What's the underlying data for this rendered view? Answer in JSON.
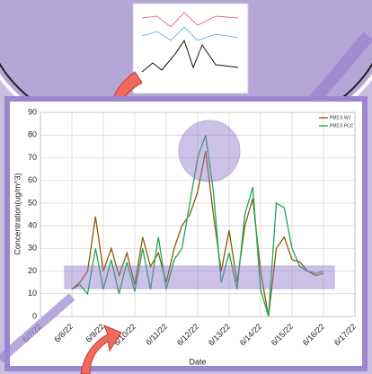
{
  "chart_data": {
    "type": "line",
    "y_label": "Concentration(ug/m^3)",
    "x_label": "Date",
    "x": [
      "6/8/22 00:00",
      "6/8/22 06:00",
      "6/8/22 12:00",
      "6/8/22 18:00",
      "6/9/22 00:00",
      "6/9/22 06:00",
      "6/9/22 12:00",
      "6/9/22 18:00",
      "6/10/22 00:00",
      "6/10/22 06:00",
      "6/10/22 12:00",
      "6/10/22 18:00",
      "6/11/22 00:00",
      "6/11/22 06:00",
      "6/11/22 12:00",
      "6/11/22 18:00",
      "6/12/22 00:00",
      "6/12/22 06:00",
      "6/12/22 12:00",
      "6/12/22 18:00",
      "6/13/22 00:00",
      "6/13/22 06:00",
      "6/13/22 12:00",
      "6/13/22 18:00",
      "6/14/22 00:00",
      "6/14/22 06:00",
      "6/14/22 12:00",
      "6/14/22 18:00",
      "6/15/22 00:00",
      "6/15/22 06:00",
      "6/15/22 12:00",
      "6/15/22 18:00",
      "6/16/22 00:00"
    ],
    "series": [
      {
        "name": "PM2.5 WJ",
        "color": "#8b5a00",
        "values": [
          12,
          15,
          20,
          44,
          20,
          30,
          18,
          28,
          14,
          35,
          22,
          28,
          15,
          30,
          40,
          45,
          55,
          73,
          45,
          20,
          38,
          15,
          40,
          52,
          20,
          0,
          30,
          35,
          25,
          24,
          20,
          18,
          19
        ]
      },
      {
        "name": "PM2.5 PCC",
        "color": "#1aa85a",
        "values": [
          12,
          14,
          10,
          30,
          12,
          25,
          10,
          24,
          11,
          30,
          12,
          35,
          12,
          25,
          30,
          50,
          70,
          80,
          55,
          15,
          28,
          12,
          45,
          57,
          12,
          0,
          50,
          48,
          30,
          22,
          20,
          19,
          20
        ]
      }
    ],
    "xlim": [
      "6/7/22",
      "6/17/22"
    ],
    "xticks": [
      "6/7/22",
      "6/8/22",
      "6/9/22",
      "6/10/22",
      "6/11/22",
      "6/12/22",
      "6/13/22",
      "6/14/22",
      "6/15/22",
      "6/16/22",
      "6/17/22"
    ],
    "ylim": [
      0,
      90
    ],
    "yticks": [
      0,
      10,
      20,
      30,
      40,
      50,
      60,
      70,
      80,
      90
    ],
    "grid": true,
    "legend": "top-right"
  }
}
